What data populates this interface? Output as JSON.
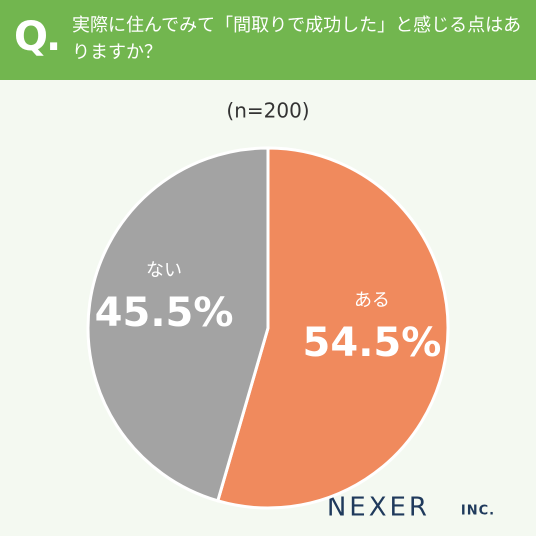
{
  "question_marker": "Q.",
  "brand": "NEXER",
  "brand_suffix": "INC.",
  "chart_data": {
    "type": "pie",
    "title": "実際に住んでみて「間取りで成功した」と感じる点はありますか？",
    "subtitle": "(n=200)",
    "categories": [
      "ある",
      "ない"
    ],
    "values": [
      54.5,
      45.5
    ],
    "value_labels": [
      "54.5%",
      "45.5%"
    ],
    "colors": [
      "#f08a5d",
      "#a3a3a3"
    ]
  }
}
